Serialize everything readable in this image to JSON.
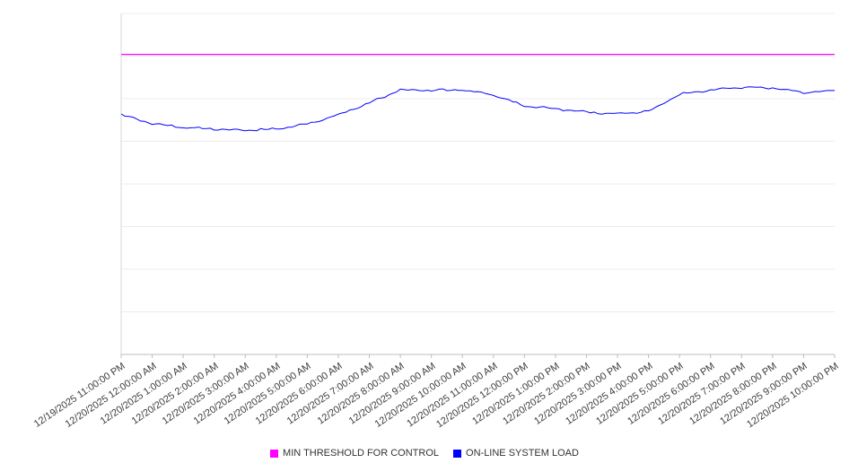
{
  "chart_data": {
    "type": "line",
    "title": "",
    "xlabel": "",
    "ylabel": "",
    "ylim": [
      0,
      100
    ],
    "y_axis_labels_visible": false,
    "grid": "horizontal",
    "y_gridlines": 8,
    "legend_position": "bottom",
    "x": [
      "12/19/2025 11:00:00 PM",
      "12/20/2025 12:00:00 AM",
      "12/20/2025 1:00:00 AM",
      "12/20/2025 2:00:00 AM",
      "12/20/2025 3:00:00 AM",
      "12/20/2025 4:00:00 AM",
      "12/20/2025 5:00:00 AM",
      "12/20/2025 6:00:00 AM",
      "12/20/2025 7:00:00 AM",
      "12/20/2025 8:00:00 AM",
      "12/20/2025 9:00:00 AM",
      "12/20/2025 10:00:00 AM",
      "12/20/2025 11:00:00 AM",
      "12/20/2025 12:00:00 PM",
      "12/20/2025 1:00:00 PM",
      "12/20/2025 2:00:00 PM",
      "12/20/2025 3:00:00 PM",
      "12/20/2025 4:00:00 PM",
      "12/20/2025 5:00:00 PM",
      "12/20/2025 6:00:00 PM",
      "12/20/2025 7:00:00 PM",
      "12/20/2025 8:00:00 PM",
      "12/20/2025 9:00:00 PM",
      "12/20/2025 10:00:00 PM"
    ],
    "series": [
      {
        "name": "MIN THRESHOLD FOR CONTROL",
        "color": "#ff00ff",
        "type": "threshold",
        "value": 88
      },
      {
        "name": "ON-LINE SYSTEM LOAD",
        "color": "#0000ff",
        "type": "noisy-line",
        "values": [
          70.3,
          67.6,
          66.6,
          66.1,
          65.8,
          66.1,
          67.6,
          70.3,
          73.7,
          77.6,
          77.4,
          77.6,
          76.1,
          72.9,
          72.1,
          71.1,
          70.5,
          71.3,
          76.3,
          77.6,
          78.4,
          78.2,
          76.8,
          77.4
        ]
      }
    ]
  },
  "legend": {
    "items": [
      {
        "label": "MIN THRESHOLD FOR CONTROL",
        "color": "#ff00ff"
      },
      {
        "label": "ON-LINE SYSTEM LOAD",
        "color": "#0000ff"
      }
    ]
  }
}
